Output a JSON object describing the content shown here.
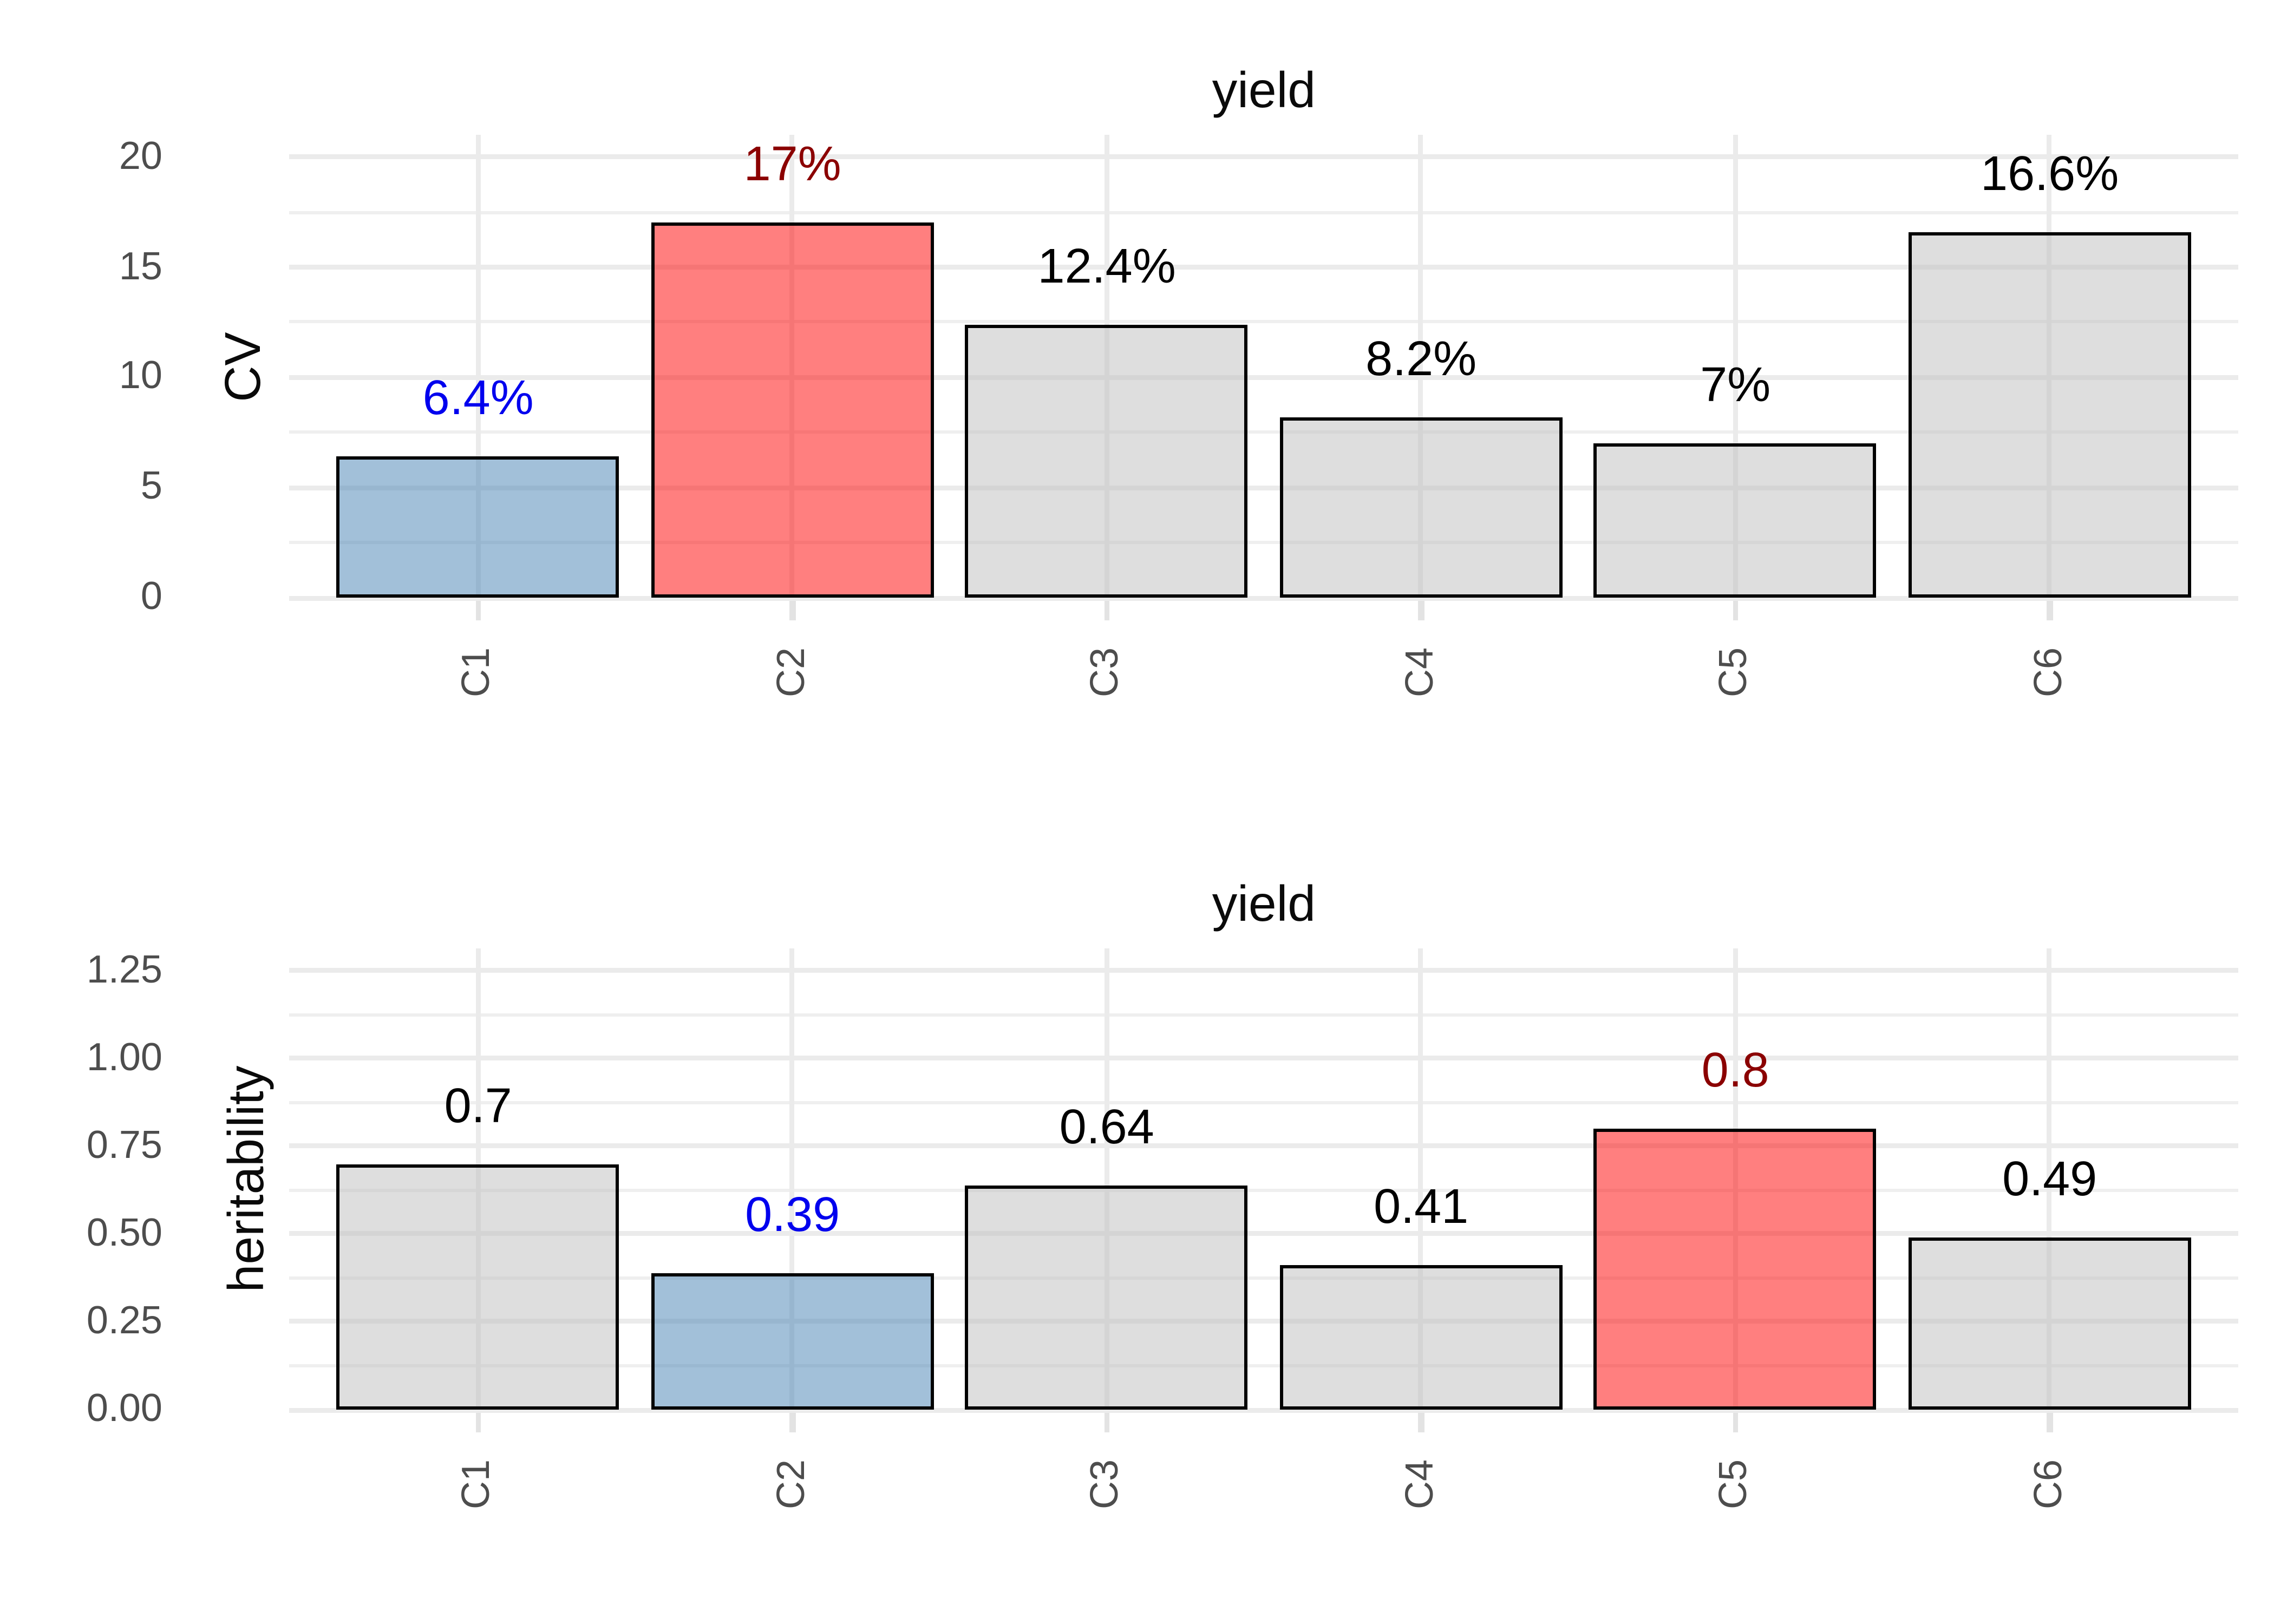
{
  "page": {
    "background": "#FFFFFF"
  },
  "palette": {
    "bar_default": "rgba(190,190,190,0.5)",
    "bar_highlight_blue": "rgba(70,130,180,0.5)",
    "bar_highlight_red": "rgba(255,0,0,0.5)",
    "bar_border": "#000000",
    "grid_major": "#EBEBEB",
    "grid_minor": "#EFEFEF",
    "axis_tick_mark": "#E3E3E3",
    "axis_text": "#4D4D4D",
    "axis_title_text": "#0A0A0A",
    "plot_title_text": "#0A0A0A",
    "label_blue": "#0000EE",
    "label_dark_red": "#8B0000",
    "label_black": "#000000"
  },
  "chart_data": [
    {
      "type": "bar",
      "title": "yield",
      "xlabel": "",
      "ylabel": "CV",
      "categories": [
        "C1",
        "C2",
        "C3",
        "C4",
        "C5",
        "C6"
      ],
      "values": [
        6.4,
        17,
        12.4,
        8.2,
        7,
        16.6
      ],
      "value_labels": [
        "6.4%",
        "17%",
        "12.4%",
        "8.2%",
        "7%",
        "16.6%"
      ],
      "value_label_colors": [
        "#0000EE",
        "#8B0000",
        "#000000",
        "#000000",
        "#000000",
        "#000000"
      ],
      "bar_styles": [
        "bar_highlight_blue",
        "bar_highlight_red",
        "bar_default",
        "bar_default",
        "bar_default",
        "bar_default"
      ],
      "yticks": [
        0,
        5,
        10,
        15,
        20
      ],
      "ytick_labels": [
        "0",
        "5",
        "10",
        "15",
        "20"
      ],
      "minor_yticks": [
        2.5,
        7.5,
        12.5,
        17.5
      ],
      "ylim": [
        0,
        21
      ],
      "grid": true,
      "legend_position": "none"
    },
    {
      "type": "bar",
      "title": "yield",
      "xlabel": "",
      "ylabel": "heritability",
      "categories": [
        "C1",
        "C2",
        "C3",
        "C4",
        "C5",
        "C6"
      ],
      "values": [
        0.7,
        0.39,
        0.64,
        0.41,
        0.8,
        0.49
      ],
      "value_labels": [
        "0.7",
        "0.39",
        "0.64",
        "0.41",
        "0.8",
        "0.49"
      ],
      "value_label_colors": [
        "#000000",
        "#0000EE",
        "#000000",
        "#000000",
        "#8B0000",
        "#000000"
      ],
      "bar_styles": [
        "bar_default",
        "bar_highlight_blue",
        "bar_default",
        "bar_default",
        "bar_highlight_red",
        "bar_default"
      ],
      "yticks": [
        0,
        0.25,
        0.5,
        0.75,
        1,
        1.25
      ],
      "ytick_labels": [
        "0.00",
        "0.25",
        "0.50",
        "0.75",
        "1.00",
        "1.25"
      ],
      "minor_yticks": [
        0.125,
        0.375,
        0.625,
        0.875,
        1.125
      ],
      "ylim": [
        0,
        1.3125
      ],
      "grid": true,
      "legend_position": "none"
    }
  ]
}
